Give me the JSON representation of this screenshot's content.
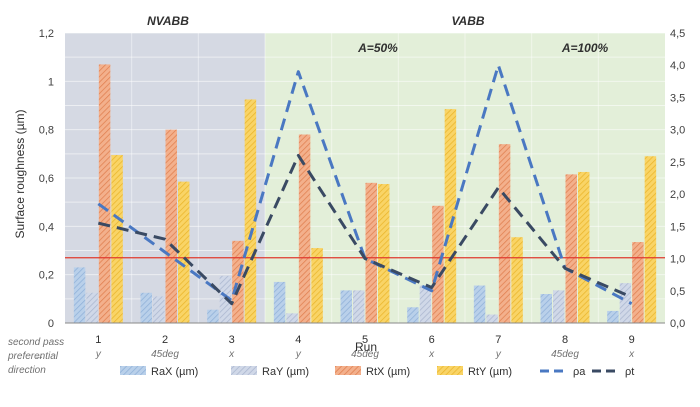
{
  "chart_data": {
    "type": "bar",
    "title": "",
    "xlabel": "Run",
    "ylabel": "Surface roughness (µm)",
    "categories": [
      "1",
      "2",
      "3",
      "4",
      "5",
      "6",
      "7",
      "8",
      "9"
    ],
    "sub_labels": [
      "y",
      "45deg",
      "x",
      "y",
      "45deg",
      "x",
      "y",
      "45deg",
      "x"
    ],
    "row_label_lines": [
      "second pass",
      "preferential",
      "direction"
    ],
    "ylim": [
      0,
      1.2
    ],
    "y2lim": [
      0,
      4.5
    ],
    "y_ticks": [
      "0",
      "0,2",
      "0,4",
      "0,6",
      "0,8",
      "1",
      "1,2"
    ],
    "y2_ticks": [
      "0,0",
      "0,5",
      "1,0",
      "1,5",
      "2,0",
      "2,5",
      "3,0",
      "3,5",
      "4,0",
      "4,5"
    ],
    "regions": [
      {
        "label": "NVABB",
        "from_run": 1,
        "to_run": 3,
        "color": "#d5d9e3"
      },
      {
        "label": "VABB",
        "from_run": 4,
        "to_run": 9,
        "color": "#e3efd9"
      }
    ],
    "annotations": [
      "A=50%",
      "A=100%"
    ],
    "reference_line": {
      "y": 0.27,
      "color": "#e03a2e"
    },
    "series": [
      {
        "name": "RaX (µm)",
        "kind": "bar",
        "axis": "left",
        "color": "#a9c4e4",
        "values": [
          0.23,
          0.125,
          0.055,
          0.17,
          0.135,
          0.065,
          0.155,
          0.12,
          0.05
        ]
      },
      {
        "name": "RaY (µm)",
        "kind": "bar",
        "axis": "left",
        "color": "#c3cde0",
        "values": [
          0.125,
          0.11,
          0.195,
          0.04,
          0.135,
          0.155,
          0.035,
          0.135,
          0.165
        ]
      },
      {
        "name": "RtX (µm)",
        "kind": "bar",
        "axis": "left",
        "color": "#ef9e74",
        "values": [
          1.07,
          0.8,
          0.34,
          0.78,
          0.58,
          0.485,
          0.74,
          0.615,
          0.335
        ]
      },
      {
        "name": "RtY (µm)",
        "kind": "bar",
        "axis": "left",
        "color": "#f7c948",
        "values": [
          0.695,
          0.585,
          0.925,
          0.31,
          0.575,
          0.885,
          0.355,
          0.625,
          0.69
        ]
      },
      {
        "name": "ρa",
        "kind": "line",
        "axis": "right",
        "color": "#4a78c2",
        "dash": "12,7",
        "values": [
          1.85,
          1.1,
          0.35,
          3.9,
          1.0,
          0.5,
          4.0,
          0.85,
          0.3
        ]
      },
      {
        "name": "ρt",
        "kind": "line",
        "axis": "right",
        "color": "#3a4a63",
        "dash": "12,7",
        "values": [
          1.55,
          1.3,
          0.3,
          2.6,
          1.0,
          0.55,
          2.1,
          0.85,
          0.4
        ]
      }
    ]
  }
}
